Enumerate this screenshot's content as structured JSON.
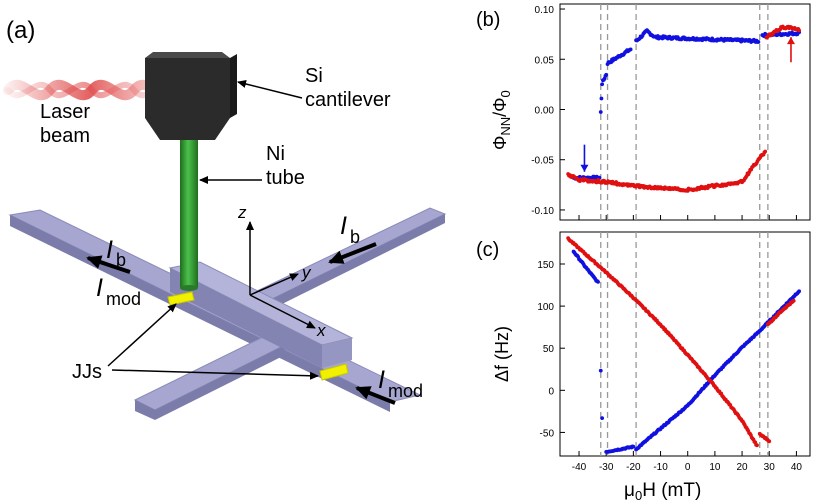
{
  "panel_a": {
    "label": "(a)",
    "laser_label": [
      "Laser",
      "beam"
    ],
    "cantilever_label": [
      "Si",
      "cantilever"
    ],
    "tube_label": [
      "Ni",
      "tube"
    ],
    "jjs_label": "JJs",
    "current_b": {
      "main": "I",
      "sub": "b"
    },
    "current_mod": {
      "main": "I",
      "sub": "mod"
    },
    "axis_x": "x",
    "axis_y": "y",
    "axis_z": "z",
    "colors": {
      "cross": "#9a9ac8",
      "cross_dark": "#7a7aa8",
      "cantilever": "#2b2b2b",
      "tube": "#2e9a2e",
      "junction": "#f0f000",
      "laser": "#e05050"
    }
  },
  "chart_data": [
    {
      "panel": "(b)",
      "type": "scatter",
      "ylabel": "Φ_NN/Φ_0",
      "ylim": [
        -0.11,
        0.105
      ],
      "xlim": [
        -47,
        45
      ],
      "yticks": [
        "0.10",
        "0.05",
        "0.00",
        "-0.05",
        "-0.10"
      ],
      "ytick_values": [
        0.1,
        0.05,
        0.0,
        -0.05,
        -0.1
      ],
      "vlines": [
        -32,
        -29.5,
        -19,
        26.5,
        29.5
      ],
      "arrows": [
        {
          "color": "#1010e0",
          "x": -38,
          "y_from": -0.035,
          "y_to": -0.062
        },
        {
          "color": "#e01010",
          "x": 38,
          "y_from": 0.047,
          "y_to": 0.072
        }
      ],
      "series": [
        {
          "color": "#1010e0",
          "segments": [
            [
              [
                -42,
                -0.068
              ],
              [
                -32.5,
                -0.068
              ]
            ],
            [
              [
                -32,
                -0.003
              ],
              [
                -31.5,
                0.026
              ],
              [
                -30,
                0.035
              ]
            ],
            [
              [
                -29.5,
                0.046
              ],
              [
                -21,
                0.06
              ]
            ],
            [
              [
                -19,
                0.068
              ],
              [
                -15,
                0.078
              ],
              [
                -12,
                0.072
              ],
              [
                26,
                0.068
              ]
            ],
            [
              [
                27.5,
                0.074
              ],
              [
                41,
                0.076
              ]
            ]
          ]
        },
        {
          "color": "#e01010",
          "segments": [
            [
              [
                41,
                0.08
              ],
              [
                35,
                0.082
              ],
              [
                29,
                0.072
              ]
            ],
            [
              [
                28.5,
                -0.042
              ],
              [
                26,
                -0.05
              ],
              [
                20,
                -0.072
              ],
              [
                10,
                -0.076
              ],
              [
                0,
                -0.08
              ],
              [
                -10,
                -0.078
              ],
              [
                -20,
                -0.076
              ],
              [
                -30,
                -0.072
              ],
              [
                -40,
                -0.07
              ],
              [
                -44,
                -0.065
              ]
            ]
          ]
        }
      ]
    },
    {
      "panel": "(c)",
      "type": "scatter",
      "xlabel": "μ_0H (mT)",
      "ylabel": "Δf (Hz)",
      "xlim": [
        -47,
        45
      ],
      "ylim": [
        -78,
        188
      ],
      "xticks": [
        "-40",
        "-30",
        "-20",
        "-10",
        "0",
        "10",
        "20",
        "30",
        "40"
      ],
      "xtick_values": [
        -40,
        -30,
        -20,
        -10,
        0,
        10,
        20,
        30,
        40
      ],
      "yticks": [
        "150",
        "100",
        "50",
        "0",
        "-50"
      ],
      "ytick_values": [
        150,
        100,
        50,
        0,
        -50
      ],
      "vlines": [
        -32,
        -29.5,
        -19,
        26.5,
        29.5
      ],
      "series": [
        {
          "color": "#1010e0",
          "segments": [
            [
              [
                -42,
                165
              ],
              [
                -38,
                148
              ],
              [
                -33,
                128
              ]
            ],
            [
              [
                -32,
                24
              ]
            ],
            [
              [
                -31.5,
                -33
              ]
            ],
            [
              [
                -30,
                -73
              ],
              [
                -20,
                -67
              ]
            ],
            [
              [
                -19,
                -70
              ],
              [
                0,
                -18
              ],
              [
                10,
                18
              ],
              [
                20,
                51
              ],
              [
                26,
                69
              ],
              [
                41,
                118
              ]
            ]
          ]
        },
        {
          "color": "#e01010",
          "segments": [
            [
              [
                -44,
                180
              ],
              [
                -30,
                140
              ],
              [
                -20,
                110
              ],
              [
                -10,
                78
              ],
              [
                0,
                42
              ],
              [
                10,
                5
              ],
              [
                20,
                -36
              ],
              [
                25.5,
                -66
              ]
            ],
            [
              [
                26.5,
                -52
              ],
              [
                30,
                -60
              ]
            ],
            [
              [
                29.5,
                78
              ],
              [
                35,
                96
              ],
              [
                39,
                106
              ]
            ]
          ]
        }
      ]
    }
  ],
  "panel_labels": {
    "b": "(b)",
    "c": "(c)"
  }
}
